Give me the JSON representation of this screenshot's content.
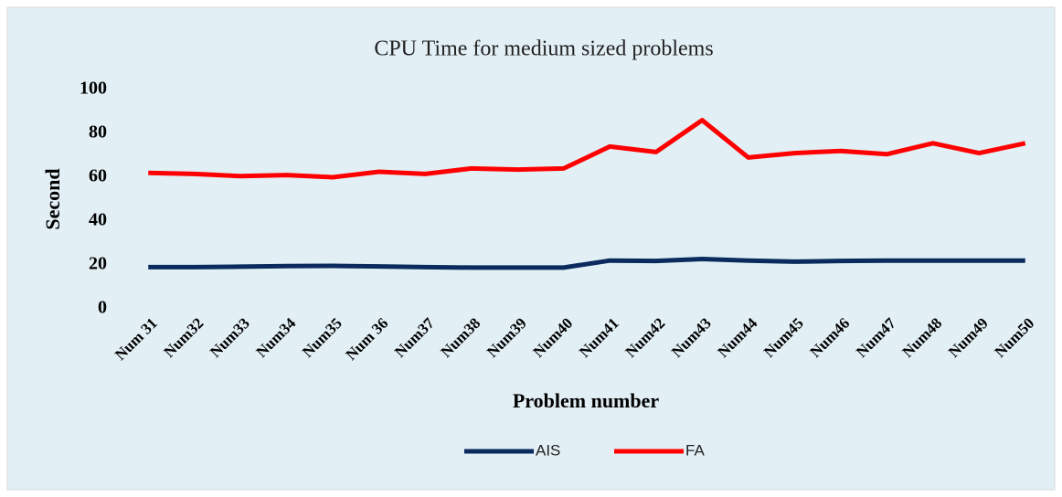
{
  "chart_data": {
    "type": "line",
    "title": "CPU Time for medium sized problems",
    "x_label": "Problem number",
    "y_label": "Second",
    "categories": [
      "Num 31",
      "Num32",
      "Num33",
      "Num34",
      "Num35",
      "Num 36",
      "Num37",
      "Num38",
      "Num39",
      "Num40",
      "Num41",
      "Num42",
      "Num43",
      "Num44",
      "Num45",
      "Num46",
      "Num47",
      "Num48",
      "Num49",
      "Num50"
    ],
    "series": [
      {
        "name": "AIS",
        "color": "#0b2a5e",
        "values": [
          19,
          19,
          19.2,
          19.5,
          19.6,
          19.3,
          19,
          18.8,
          18.8,
          18.8,
          22,
          21.8,
          22.7,
          22,
          21.5,
          21.8,
          22,
          22,
          22,
          22
        ]
      },
      {
        "name": "FA",
        "color": "#ff0000",
        "values": [
          62,
          61.5,
          60.5,
          61,
          60,
          62.5,
          61.5,
          64,
          63.5,
          64,
          74,
          71.5,
          86,
          69,
          71,
          72,
          70.5,
          75.5,
          71,
          75.5
        ]
      }
    ],
    "ylim": [
      0,
      100
    ],
    "yticks": [
      0,
      20,
      40,
      60,
      80,
      100
    ],
    "grid": false,
    "legend": "bottom"
  }
}
